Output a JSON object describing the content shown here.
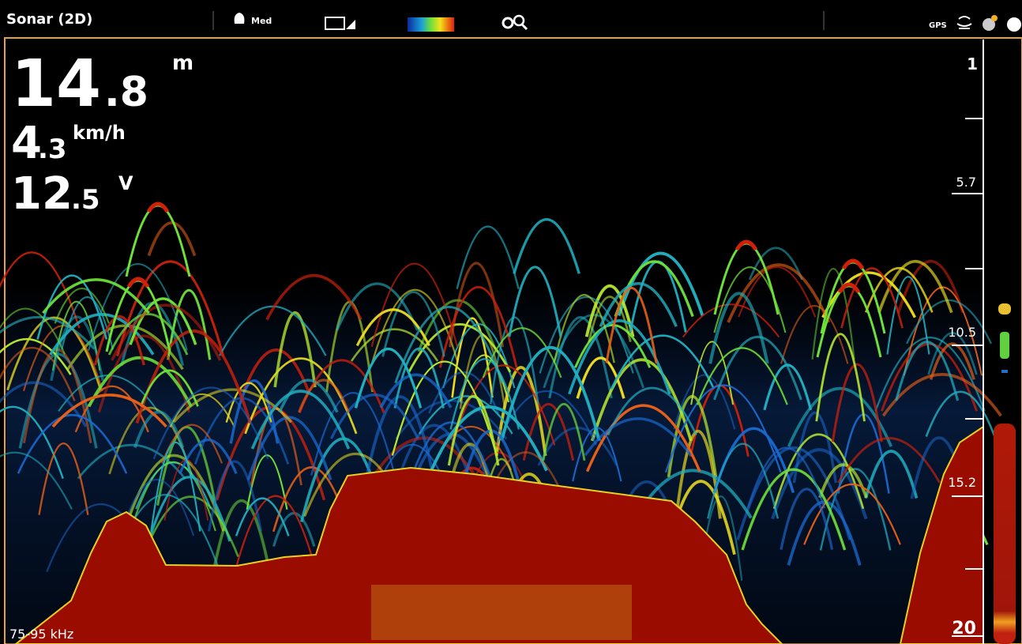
{
  "header": {
    "title": "Sonar (2D)",
    "sensitivity": "Med"
  },
  "readouts": [
    {
      "whole": "14",
      "fraction": ".8",
      "unit": "m"
    },
    {
      "whole": "4",
      "fraction": ".3",
      "unit": "km/h"
    },
    {
      "whole": "12",
      "fraction": ".5",
      "unit": "V"
    }
  ],
  "depth_scale": [
    "1",
    "5.7",
    "10.5",
    "15.2",
    "20"
  ],
  "frequency": "75-95 kHz",
  "status_icons": {
    "gps": "GPS"
  }
}
